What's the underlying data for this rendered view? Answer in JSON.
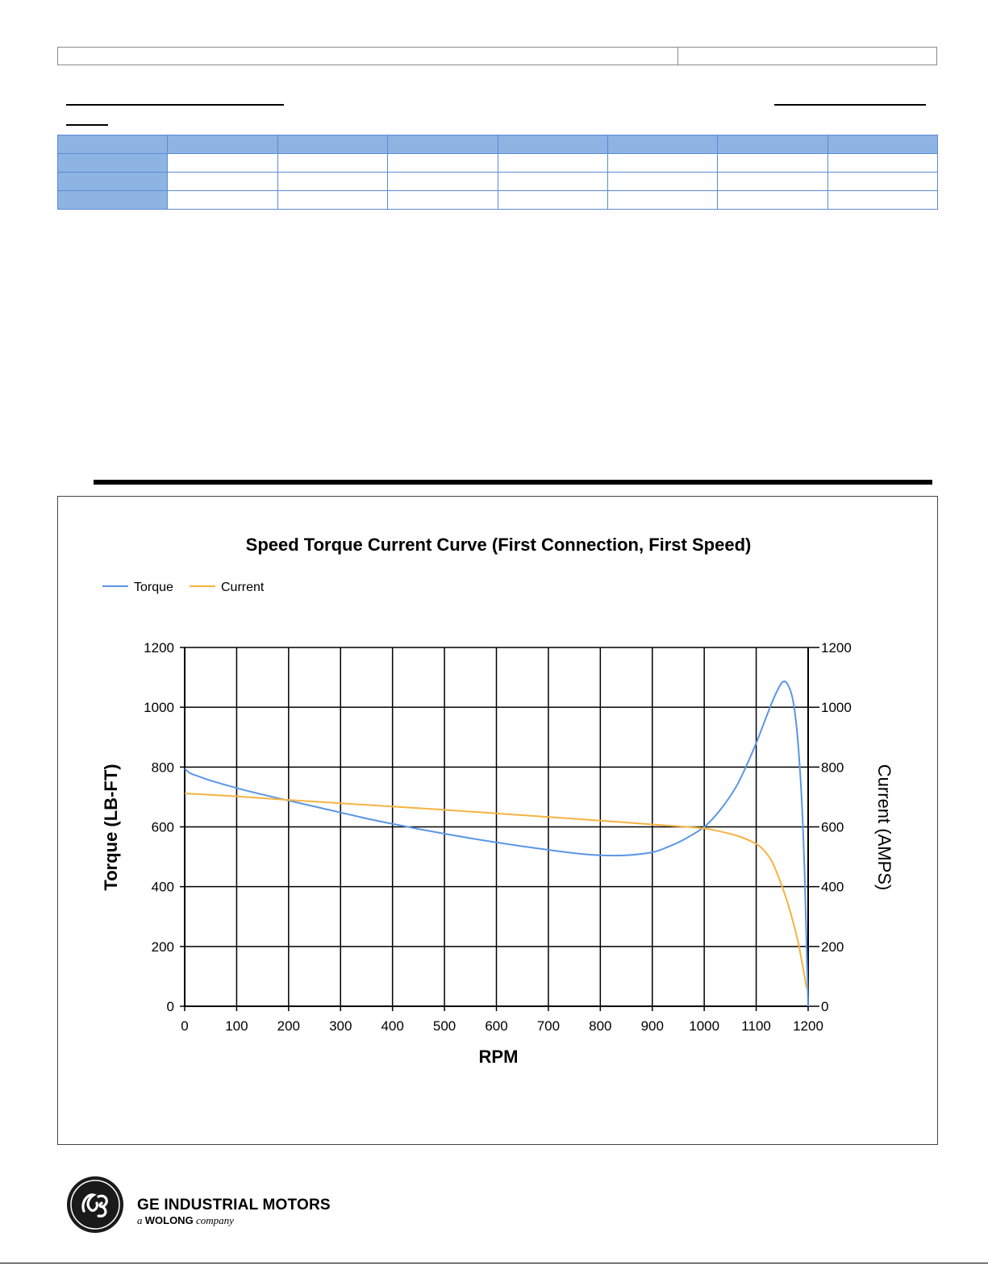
{
  "chart_data": {
    "type": "line",
    "title": "Speed Torque Current Curve (First Connection, First Speed)",
    "xlabel": "RPM",
    "ylabel": "Torque (LB-FT)",
    "y2label": "Current (AMPS)",
    "xlim": [
      0,
      1200
    ],
    "ylim": [
      0,
      1200
    ],
    "y2lim": [
      0,
      1200
    ],
    "x_ticks": [
      0,
      100,
      200,
      300,
      400,
      500,
      600,
      700,
      800,
      900,
      1000,
      1100,
      1200
    ],
    "y_ticks": [
      0,
      200,
      400,
      600,
      800,
      1000,
      1200
    ],
    "grid": true,
    "legend_position": "top-left",
    "series": [
      {
        "name": "Torque",
        "color": "#5a96e6",
        "axis": "left",
        "x": [
          0,
          10,
          25,
          50,
          100,
          150,
          200,
          250,
          300,
          350,
          400,
          450,
          500,
          550,
          600,
          650,
          700,
          750,
          800,
          850,
          900,
          930,
          960,
          1000,
          1030,
          1060,
          1080,
          1100,
          1120,
          1135,
          1150,
          1160,
          1170,
          1178,
          1185,
          1190,
          1194,
          1197,
          1200
        ],
        "y": [
          795,
          780,
          770,
          755,
          730,
          708,
          688,
          668,
          648,
          628,
          610,
          593,
          577,
          562,
          548,
          535,
          523,
          512,
          505,
          505,
          515,
          533,
          557,
          600,
          655,
          730,
          800,
          880,
          970,
          1035,
          1083,
          1078,
          1030,
          930,
          770,
          600,
          400,
          200,
          0
        ]
      },
      {
        "name": "Current",
        "color": "#f5b342",
        "axis": "right",
        "x": [
          0,
          100,
          200,
          300,
          400,
          500,
          600,
          700,
          800,
          900,
          950,
          1000,
          1030,
          1060,
          1090,
          1110,
          1130,
          1150,
          1165,
          1180,
          1190,
          1197
        ],
        "y": [
          712,
          702,
          690,
          679,
          668,
          657,
          645,
          633,
          621,
          608,
          602,
          595,
          585,
          572,
          552,
          530,
          485,
          400,
          320,
          220,
          130,
          60
        ]
      }
    ]
  }
}
